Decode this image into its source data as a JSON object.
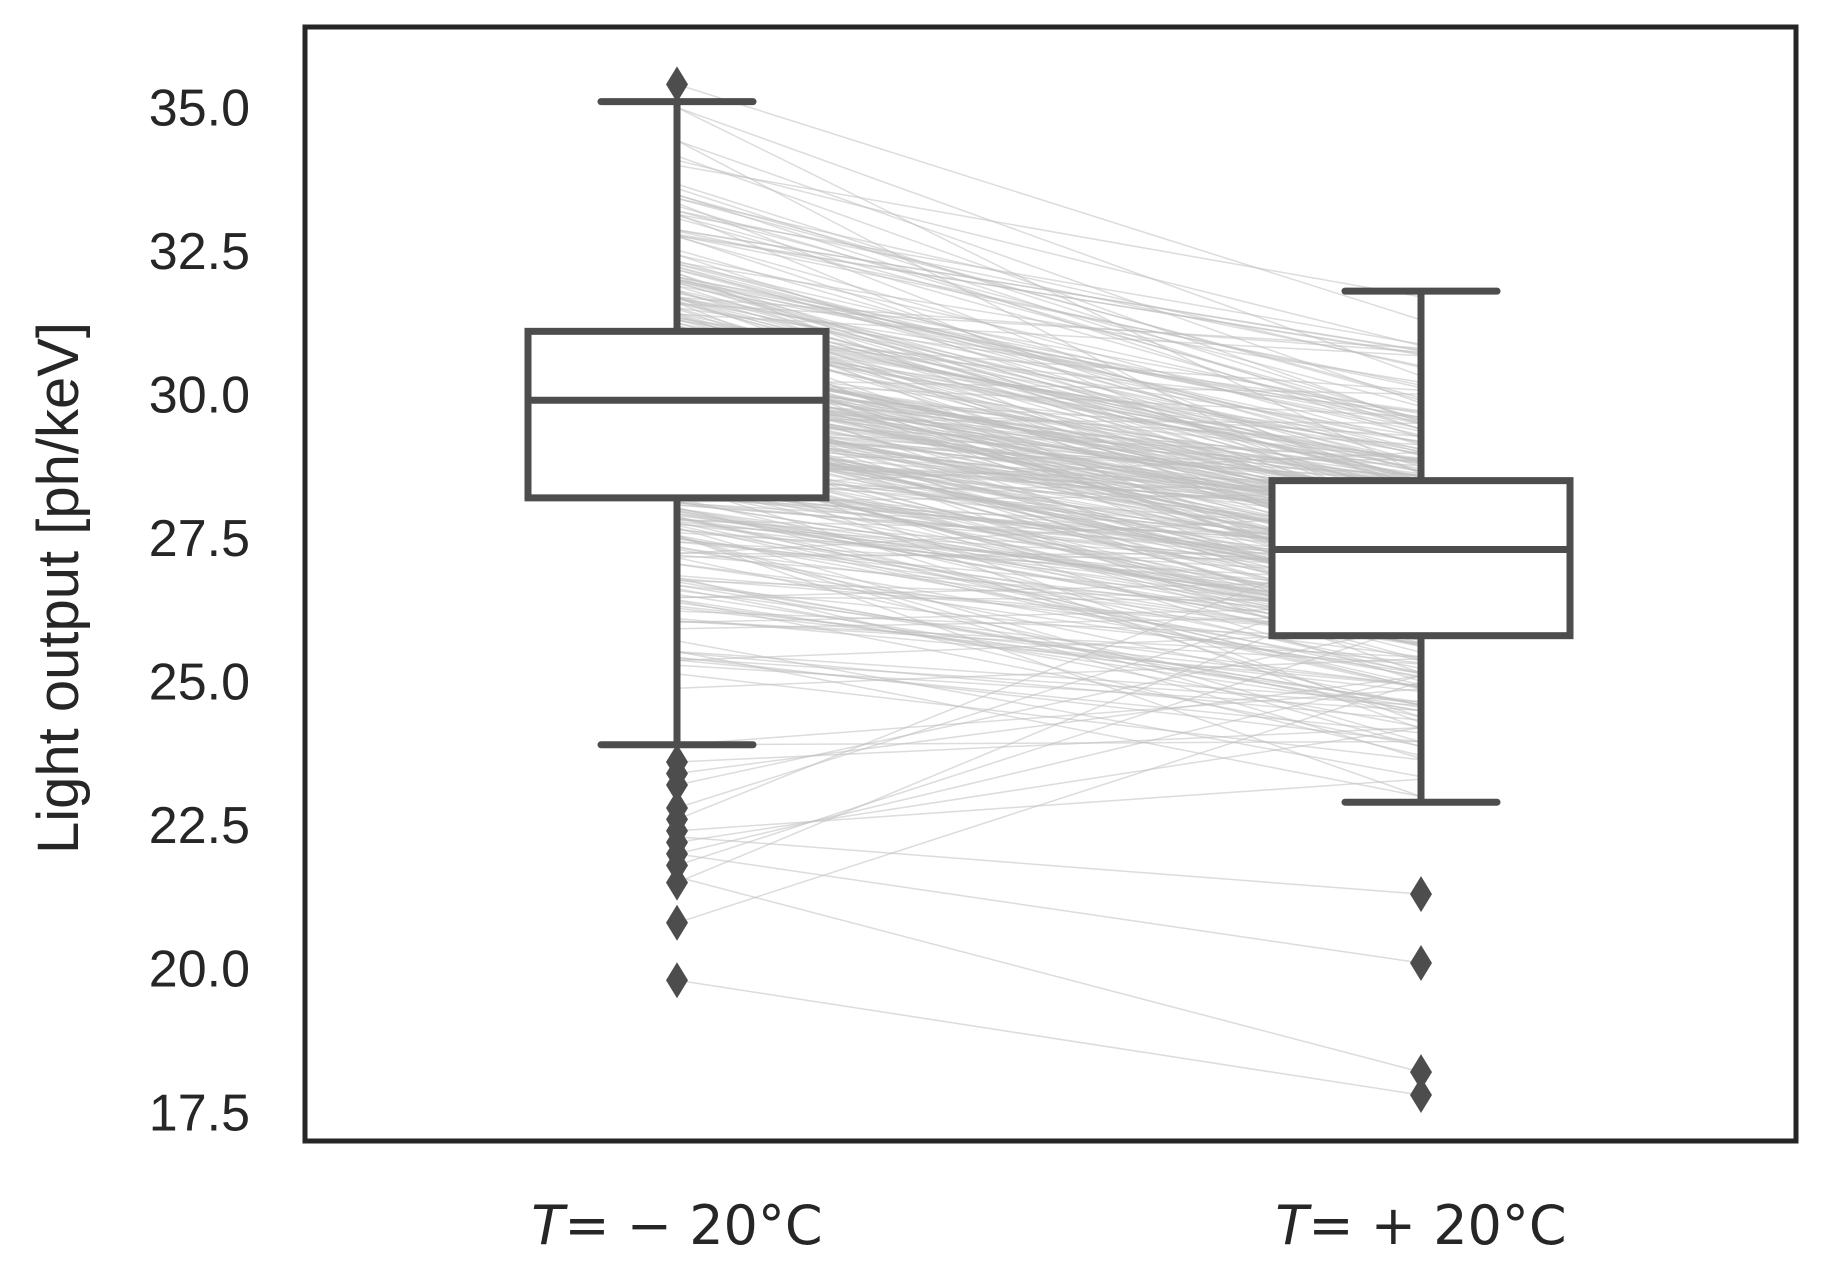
{
  "chart_data": {
    "type": "box",
    "ylabel": "Light output [ph/keV]",
    "ylim": [
      17.0,
      36.4
    ],
    "y_ticks": [
      "17.5",
      "20.0",
      "22.5",
      "25.0",
      "27.5",
      "30.0",
      "32.5",
      "35.0"
    ],
    "categories": [
      {
        "var": "T",
        "rest": "= − 20°C"
      },
      {
        "var": "T",
        "rest": "= + 20°C"
      }
    ],
    "boxes": [
      {
        "whisker_low": 23.9,
        "q1": 28.2,
        "median": 29.9,
        "q3": 31.1,
        "whisker_high": 35.1,
        "outliers": [
          35.4,
          23.6,
          23.4,
          23.2,
          22.8,
          22.6,
          22.4,
          22.2,
          22.0,
          21.8,
          21.5,
          20.8,
          19.8
        ]
      },
      {
        "whisker_low": 22.9,
        "q1": 25.8,
        "median": 27.3,
        "q3": 28.5,
        "whisker_high": 31.8,
        "outliers": [
          21.3,
          20.1,
          18.2,
          17.8
        ]
      }
    ],
    "paired_lines_note": "",
    "colors": {
      "box_edge": "#4d4d4d",
      "box_fill": "#ffffff",
      "paired_line": "#bfbfbf",
      "frame": "#262626",
      "text": "#262626"
    }
  }
}
